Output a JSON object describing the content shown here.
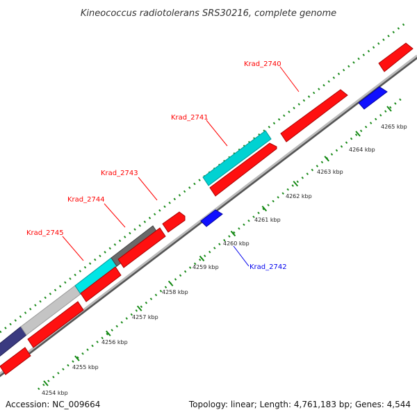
{
  "title": "Kineococcus radiotolerans SRS30216, complete genome",
  "footer": {
    "accession": "Accession: NC_009664",
    "summary": "Topology: linear; Length: 4,761,183 bp; Genes: 4,544"
  },
  "ruler": {
    "unit": "kbp",
    "ticks": [
      "4254 kbp",
      "4255 kbp",
      "4256 kbp",
      "4257 kbp",
      "4258 kbp",
      "4259 kbp",
      "4260 kbp",
      "4261 kbp",
      "4262 kbp",
      "4263 kbp",
      "4264 kbp",
      "4265 kbp"
    ]
  },
  "labels": [
    {
      "id": "Krad_2745",
      "text": "Krad_2745",
      "color": "#ff0000"
    },
    {
      "id": "Krad_2744",
      "text": "Krad_2744",
      "color": "#ff0000"
    },
    {
      "id": "Krad_2743",
      "text": "Krad_2743",
      "color": "#ff0000"
    },
    {
      "id": "Krad_2741",
      "text": "Krad_2741",
      "color": "#ff0000"
    },
    {
      "id": "Krad_2740",
      "text": "Krad_2740",
      "color": "#ff0000"
    },
    {
      "id": "Krad_2742",
      "text": "Krad_2742",
      "color": "#0000ee"
    }
  ],
  "colors": {
    "cds": "#ff0000",
    "reverse_cds": "#0000ff",
    "cyan_feature": "#00e0e0",
    "dark_grey_feature": "#666666",
    "light_grey_feature": "#c0c0c0",
    "navy_feature": "#404080",
    "axis": "#999999",
    "ticks": "#118811"
  }
}
